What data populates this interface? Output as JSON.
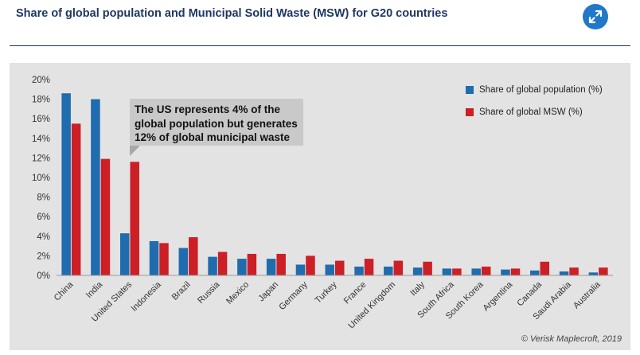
{
  "header": {
    "title": "Share of global population and Municipal Solid Waste (MSW) for G20 countries",
    "expand_icon": "expand-arrows-icon"
  },
  "colors": {
    "accent": "#1f78c8",
    "title": "#1f3763",
    "panel_background": "#e3e3e3",
    "population": "#1f6cae",
    "msw": "#cc1f26"
  },
  "annotation": {
    "line1": "The US represents 4% of the",
    "line2": "global population but generates",
    "line3": "12% of global municipal waste"
  },
  "credit": "© Verisk Maplecroft, 2019",
  "chart_data": {
    "type": "bar",
    "categories": [
      "China",
      "India",
      "United States",
      "Indonesia",
      "Brazil",
      "Russia",
      "Mexico",
      "Japan",
      "Germany",
      "Turkey",
      "France",
      "United Kingdom",
      "Italy",
      "South Africa",
      "South Korea",
      "Argentina",
      "Canada",
      "Saudi Arabia",
      "Australia"
    ],
    "series": [
      {
        "name": "Share of global population (%)",
        "color": "#1f6cae",
        "values": [
          18.6,
          18.0,
          4.3,
          3.5,
          2.8,
          1.9,
          1.7,
          1.7,
          1.1,
          1.1,
          0.9,
          0.9,
          0.8,
          0.7,
          0.7,
          0.6,
          0.5,
          0.4,
          0.3
        ]
      },
      {
        "name": "Share of global MSW (%)",
        "color": "#cc1f26",
        "values": [
          15.5,
          11.9,
          11.6,
          3.3,
          3.9,
          2.4,
          2.2,
          2.2,
          2.0,
          1.5,
          1.7,
          1.5,
          1.4,
          0.7,
          0.9,
          0.7,
          1.4,
          0.8,
          0.8
        ]
      }
    ],
    "y_ticks": [
      "0%",
      "2%",
      "4%",
      "6%",
      "8%",
      "10%",
      "12%",
      "14%",
      "16%",
      "18%",
      "20%"
    ],
    "ylim": [
      0,
      20
    ],
    "grid": false,
    "legend": "top-right"
  }
}
